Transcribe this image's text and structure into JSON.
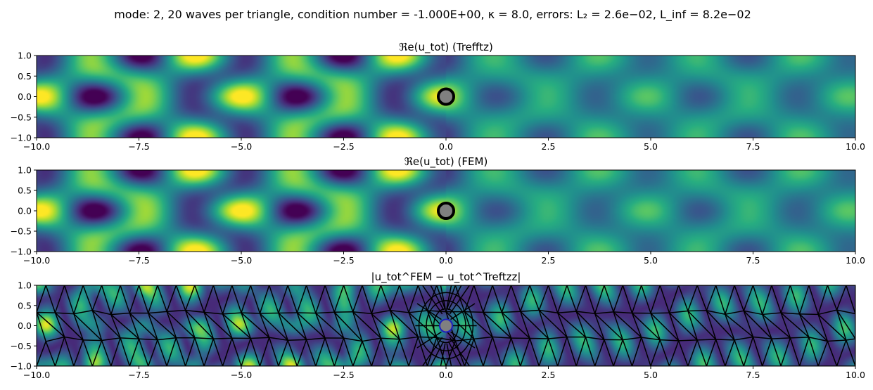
{
  "figure": {
    "suptitle": "mode: 2, 20 waves per triangle, condition number = -1.000E+00, κ = 8.0, errors: L₂ = 2.6e−02, L_inf = 8.2e−02"
  },
  "colors": {
    "viridis": [
      "#440154",
      "#472c7a",
      "#3b518b",
      "#2c718e",
      "#21908d",
      "#27ad81",
      "#5cc863",
      "#aadc32",
      "#fde725"
    ],
    "obstacle_fill": "#808080",
    "obstacle_edge_panels_1_2": "#000000",
    "obstacle_edge_panel_3": "#1f1fbf",
    "mesh_lines": "#000000"
  },
  "chart_data": [
    {
      "type": "heatmap",
      "title": "ℜe(u_tot) (Trefftz)",
      "xlim": [
        -10.0,
        10.0
      ],
      "ylim": [
        -1.0,
        1.0
      ],
      "xticks": [
        "−10.0",
        "−7.5",
        "−5.0",
        "−2.5",
        "0.0",
        "2.5",
        "5.0",
        "7.5",
        "10.0"
      ],
      "yticks": [
        "1.0",
        "0.5",
        "0.0",
        "−0.5",
        "−1.0"
      ],
      "field": "real_part_total",
      "obstacle": {
        "cx": 0.0,
        "cy": 0.0,
        "r": 0.07
      },
      "mesh": false,
      "colormap": "viridis"
    },
    {
      "type": "heatmap",
      "title": "ℜe(u_tot) (FEM)",
      "xlim": [
        -10.0,
        10.0
      ],
      "ylim": [
        -1.0,
        1.0
      ],
      "xticks": [
        "−10.0",
        "−7.5",
        "−5.0",
        "−2.5",
        "0.0",
        "2.5",
        "5.0",
        "7.5",
        "10.0"
      ],
      "yticks": [
        "1.0",
        "0.5",
        "0.0",
        "−0.5",
        "−1.0"
      ],
      "field": "real_part_total",
      "obstacle": {
        "cx": 0.0,
        "cy": 0.0,
        "r": 0.07
      },
      "mesh": false,
      "colormap": "viridis"
    },
    {
      "type": "heatmap",
      "title": "|u_tot^FEM − u_tot^Treftzz|",
      "xlim": [
        -10.0,
        10.0
      ],
      "ylim": [
        -1.0,
        1.0
      ],
      "xticks": [
        "−10.0",
        "−7.5",
        "−5.0",
        "−2.5",
        "0.0",
        "2.5",
        "5.0",
        "7.5",
        "10.0"
      ],
      "yticks": [
        "1.0",
        "0.5",
        "0.0",
        "−0.5",
        "−1.0"
      ],
      "field": "abs_difference",
      "obstacle": {
        "cx": 0.0,
        "cy": 0.0,
        "r": 0.07
      },
      "mesh": true,
      "colormap": "viridis"
    }
  ]
}
